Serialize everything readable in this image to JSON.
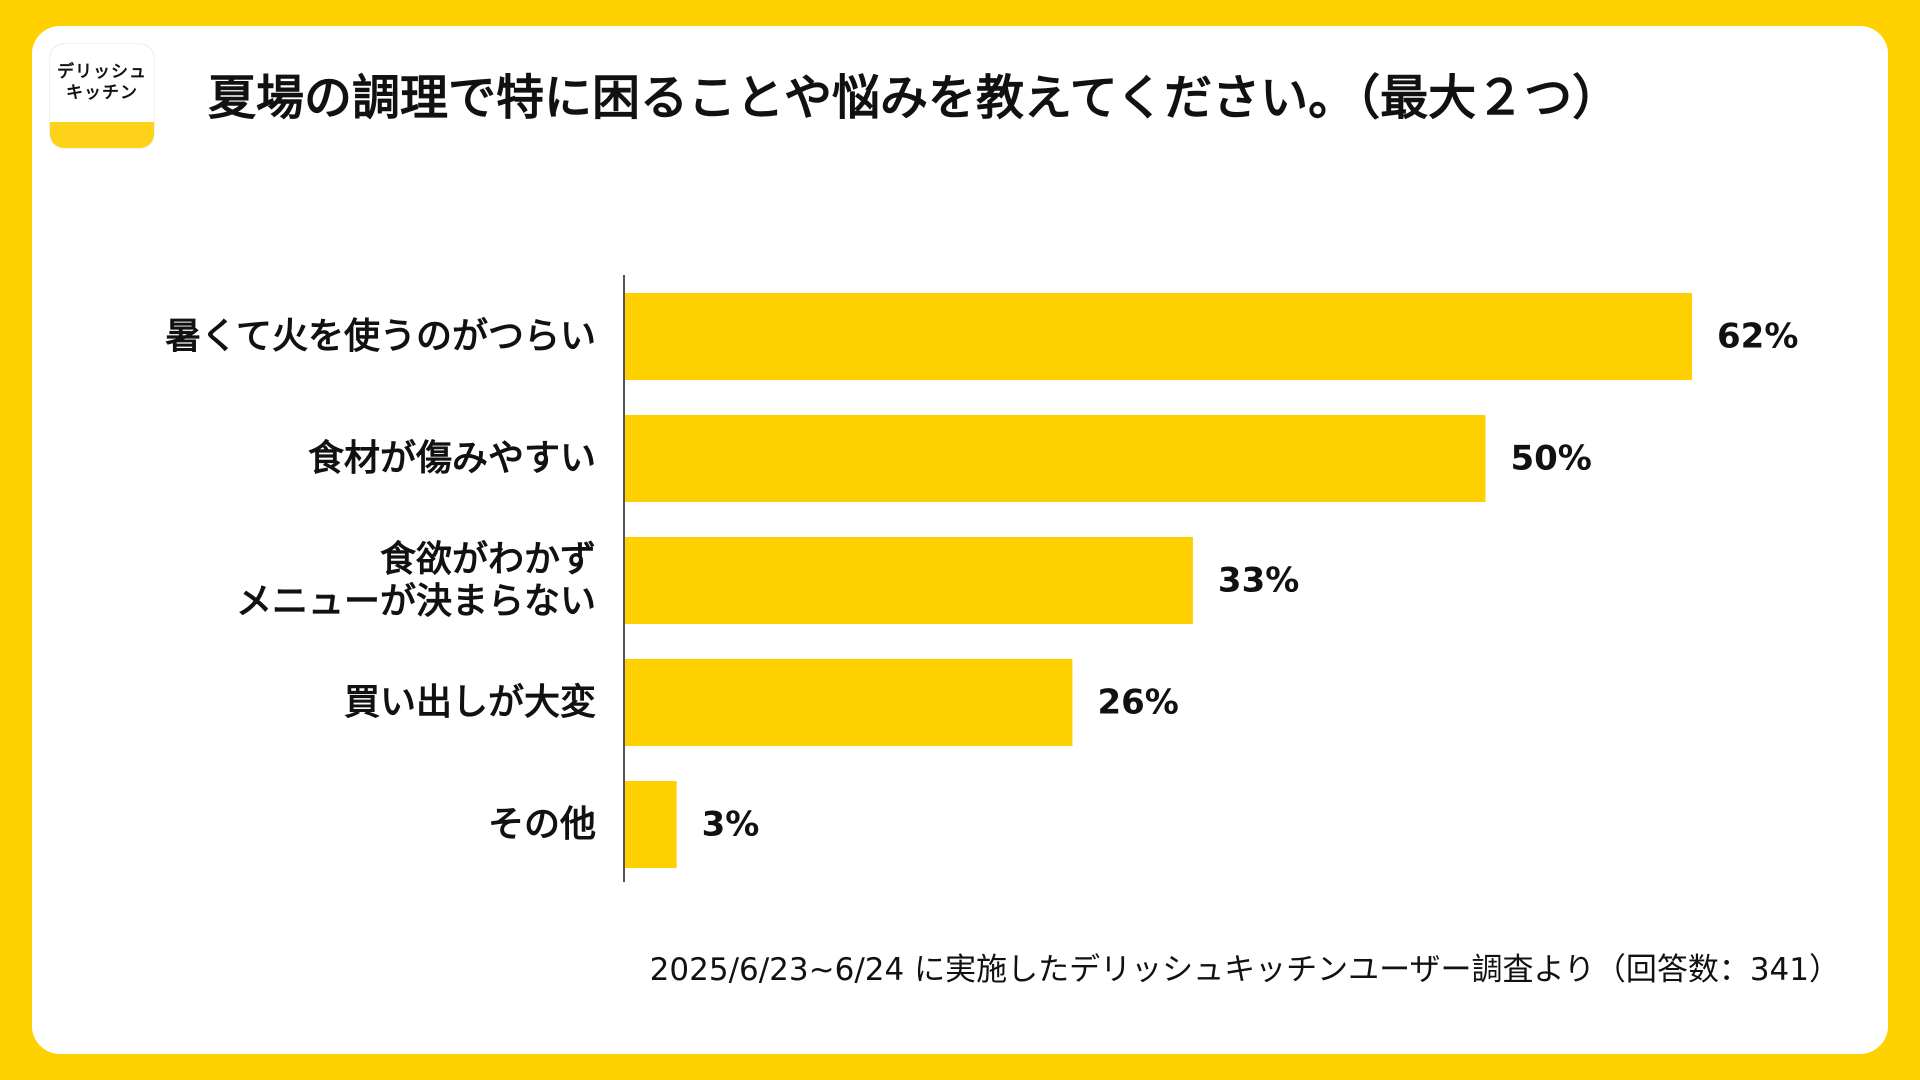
{
  "logo": {
    "line1": "デリッシュ",
    "line2": "キッチン"
  },
  "title": "夏場の調理で特に困ることや悩みを教えてください。（最大２つ）",
  "footnote": "2025/6/23~6/24 に実施したデリッシュキッチンユーザー調査より（回答数：341）",
  "colors": {
    "background": "#FFD000",
    "bar": "#FFD000",
    "card": "#FFFFFF",
    "text": "#111111"
  },
  "chart_data": {
    "type": "bar",
    "orientation": "horizontal",
    "categories": [
      [
        "暑くて火を使うのがつらい"
      ],
      [
        "食材が傷みやすい"
      ],
      [
        "食欲がわかず",
        "メニューが決まらない"
      ],
      [
        "買い出しが大変"
      ],
      [
        "その他"
      ]
    ],
    "values": [
      62,
      50,
      33,
      26,
      3
    ],
    "value_labels": [
      "62%",
      "50%",
      "33%",
      "26%",
      "3%"
    ],
    "unit": "%",
    "grid": false,
    "legend": "none"
  }
}
